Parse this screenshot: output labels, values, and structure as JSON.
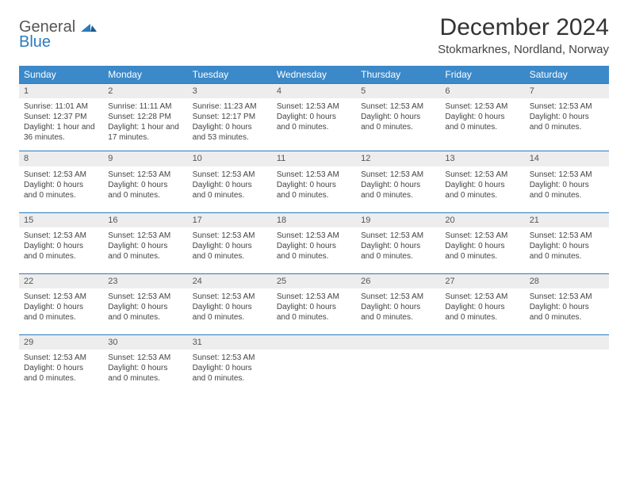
{
  "logo": {
    "general": "General",
    "blue": "Blue"
  },
  "title": "December 2024",
  "location": "Stokmarknes, Nordland, Norway",
  "colors": {
    "header_bg": "#3b89c9",
    "header_text": "#ffffff",
    "rule": "#2b7bbf",
    "daynum_bg": "#ededed",
    "text": "#444444",
    "background": "#ffffff"
  },
  "layout": {
    "columns": 7,
    "rows": 5,
    "font_family": "Arial",
    "th_fontsize": 12,
    "cell_fontsize": 10
  },
  "daysOfWeek": [
    "Sunday",
    "Monday",
    "Tuesday",
    "Wednesday",
    "Thursday",
    "Friday",
    "Saturday"
  ],
  "cells": [
    {
      "n": "1",
      "lines": [
        "Sunrise: 11:01 AM",
        "Sunset: 12:37 PM",
        "Daylight: 1 hour and 36 minutes."
      ]
    },
    {
      "n": "2",
      "lines": [
        "Sunrise: 11:11 AM",
        "Sunset: 12:28 PM",
        "Daylight: 1 hour and 17 minutes."
      ]
    },
    {
      "n": "3",
      "lines": [
        "Sunrise: 11:23 AM",
        "Sunset: 12:17 PM",
        "Daylight: 0 hours and 53 minutes."
      ]
    },
    {
      "n": "4",
      "lines": [
        "",
        "Sunset: 12:53 AM",
        "Daylight: 0 hours and 0 minutes."
      ]
    },
    {
      "n": "5",
      "lines": [
        "",
        "Sunset: 12:53 AM",
        "Daylight: 0 hours and 0 minutes."
      ]
    },
    {
      "n": "6",
      "lines": [
        "",
        "Sunset: 12:53 AM",
        "Daylight: 0 hours and 0 minutes."
      ]
    },
    {
      "n": "7",
      "lines": [
        "",
        "Sunset: 12:53 AM",
        "Daylight: 0 hours and 0 minutes."
      ]
    },
    {
      "n": "8",
      "lines": [
        "",
        "Sunset: 12:53 AM",
        "Daylight: 0 hours and 0 minutes."
      ]
    },
    {
      "n": "9",
      "lines": [
        "",
        "Sunset: 12:53 AM",
        "Daylight: 0 hours and 0 minutes."
      ]
    },
    {
      "n": "10",
      "lines": [
        "",
        "Sunset: 12:53 AM",
        "Daylight: 0 hours and 0 minutes."
      ]
    },
    {
      "n": "11",
      "lines": [
        "",
        "Sunset: 12:53 AM",
        "Daylight: 0 hours and 0 minutes."
      ]
    },
    {
      "n": "12",
      "lines": [
        "",
        "Sunset: 12:53 AM",
        "Daylight: 0 hours and 0 minutes."
      ]
    },
    {
      "n": "13",
      "lines": [
        "",
        "Sunset: 12:53 AM",
        "Daylight: 0 hours and 0 minutes."
      ]
    },
    {
      "n": "14",
      "lines": [
        "",
        "Sunset: 12:53 AM",
        "Daylight: 0 hours and 0 minutes."
      ]
    },
    {
      "n": "15",
      "lines": [
        "",
        "Sunset: 12:53 AM",
        "Daylight: 0 hours and 0 minutes."
      ]
    },
    {
      "n": "16",
      "lines": [
        "",
        "Sunset: 12:53 AM",
        "Daylight: 0 hours and 0 minutes."
      ]
    },
    {
      "n": "17",
      "lines": [
        "",
        "Sunset: 12:53 AM",
        "Daylight: 0 hours and 0 minutes."
      ]
    },
    {
      "n": "18",
      "lines": [
        "",
        "Sunset: 12:53 AM",
        "Daylight: 0 hours and 0 minutes."
      ]
    },
    {
      "n": "19",
      "lines": [
        "",
        "Sunset: 12:53 AM",
        "Daylight: 0 hours and 0 minutes."
      ]
    },
    {
      "n": "20",
      "lines": [
        "",
        "Sunset: 12:53 AM",
        "Daylight: 0 hours and 0 minutes."
      ]
    },
    {
      "n": "21",
      "lines": [
        "",
        "Sunset: 12:53 AM",
        "Daylight: 0 hours and 0 minutes."
      ]
    },
    {
      "n": "22",
      "lines": [
        "",
        "Sunset: 12:53 AM",
        "Daylight: 0 hours and 0 minutes."
      ]
    },
    {
      "n": "23",
      "lines": [
        "",
        "Sunset: 12:53 AM",
        "Daylight: 0 hours and 0 minutes."
      ]
    },
    {
      "n": "24",
      "lines": [
        "",
        "Sunset: 12:53 AM",
        "Daylight: 0 hours and 0 minutes."
      ]
    },
    {
      "n": "25",
      "lines": [
        "",
        "Sunset: 12:53 AM",
        "Daylight: 0 hours and 0 minutes."
      ]
    },
    {
      "n": "26",
      "lines": [
        "",
        "Sunset: 12:53 AM",
        "Daylight: 0 hours and 0 minutes."
      ]
    },
    {
      "n": "27",
      "lines": [
        "",
        "Sunset: 12:53 AM",
        "Daylight: 0 hours and 0 minutes."
      ]
    },
    {
      "n": "28",
      "lines": [
        "",
        "Sunset: 12:53 AM",
        "Daylight: 0 hours and 0 minutes."
      ]
    },
    {
      "n": "29",
      "lines": [
        "",
        "Sunset: 12:53 AM",
        "Daylight: 0 hours and 0 minutes."
      ]
    },
    {
      "n": "30",
      "lines": [
        "",
        "Sunset: 12:53 AM",
        "Daylight: 0 hours and 0 minutes."
      ]
    },
    {
      "n": "31",
      "lines": [
        "",
        "Sunset: 12:53 AM",
        "Daylight: 0 hours and 0 minutes."
      ]
    },
    {
      "n": "",
      "lines": []
    },
    {
      "n": "",
      "lines": []
    },
    {
      "n": "",
      "lines": []
    },
    {
      "n": "",
      "lines": []
    }
  ]
}
